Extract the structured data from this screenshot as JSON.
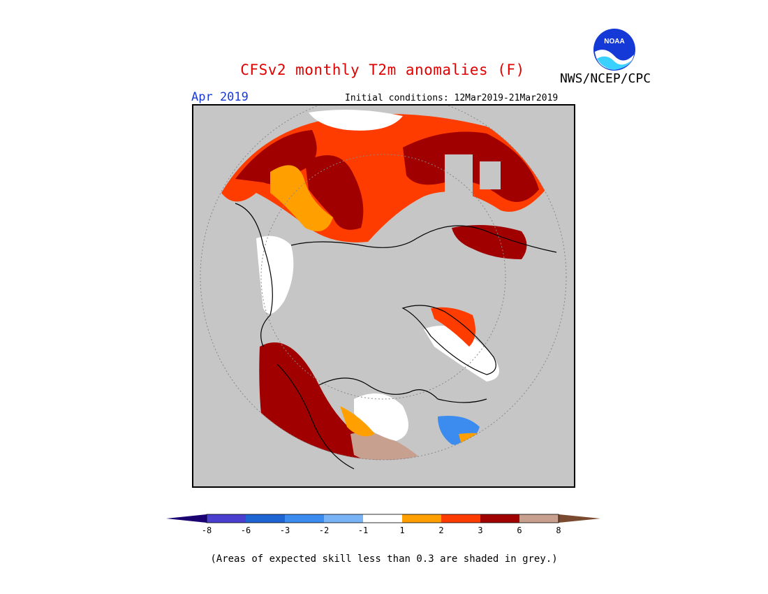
{
  "header": {
    "title": "CFSv2 monthly T2m anomalies (F)",
    "agency": "NWS/NCEP/CPC",
    "month": "Apr 2019",
    "initial_conditions": "Initial conditions: 12Mar2019-21Mar2019"
  },
  "logo": {
    "icon": "noaa-logo-icon",
    "text": "NOAA"
  },
  "legend": {
    "colors": [
      "#1a0070",
      "#4a3fce",
      "#1e64d2",
      "#3c8cf0",
      "#78b4f5",
      "#ffffff",
      "#ffa000",
      "#ff3c00",
      "#a00000",
      "#c8a090",
      "#7a4a30"
    ],
    "ticks": [
      "-8",
      "-6",
      "-3",
      "-2",
      "-1",
      "1",
      "2",
      "3",
      "6",
      "8"
    ]
  },
  "footnote": "(Areas of expected skill less than 0.3 are shaded in grey.)",
  "colors": {
    "skill_mask": "#c6c6c6",
    "title": "#e00000",
    "month": "#1a3ad8"
  }
}
